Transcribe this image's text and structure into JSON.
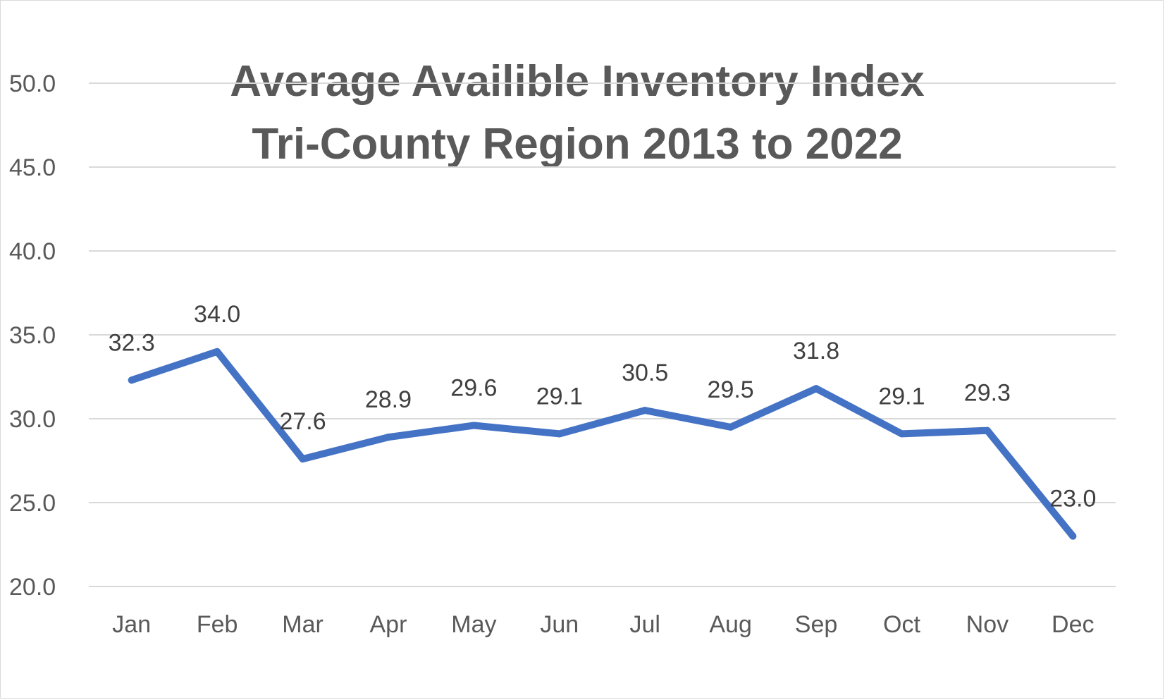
{
  "chart_data": {
    "type": "line",
    "title": [
      "Average Availible Inventory Index",
      "Tri-County Region 2013 to 2022"
    ],
    "xlabel": "",
    "ylabel": "",
    "categories": [
      "Jan",
      "Feb",
      "Mar",
      "Apr",
      "May",
      "Jun",
      "Jul",
      "Aug",
      "Sep",
      "Oct",
      "Nov",
      "Dec"
    ],
    "series": [
      {
        "values": [
          32.3,
          34.0,
          27.6,
          28.9,
          29.6,
          29.1,
          30.5,
          29.5,
          31.8,
          29.1,
          29.3,
          23.0
        ],
        "data_labels": [
          "32.3",
          "34.0",
          "27.6",
          "28.9",
          "29.6",
          "29.1",
          "30.5",
          "29.5",
          "31.8",
          "29.1",
          "29.3",
          "23.0"
        ],
        "color": "#4472c4"
      }
    ],
    "ylim": [
      20,
      50
    ],
    "yticks": [
      20,
      25,
      30,
      35,
      40,
      45,
      50
    ],
    "ytick_labels": [
      "20.0",
      "25.0",
      "30.0",
      "35.0",
      "40.0",
      "45.0",
      "50.0"
    ],
    "grid": true,
    "legend": "none"
  }
}
